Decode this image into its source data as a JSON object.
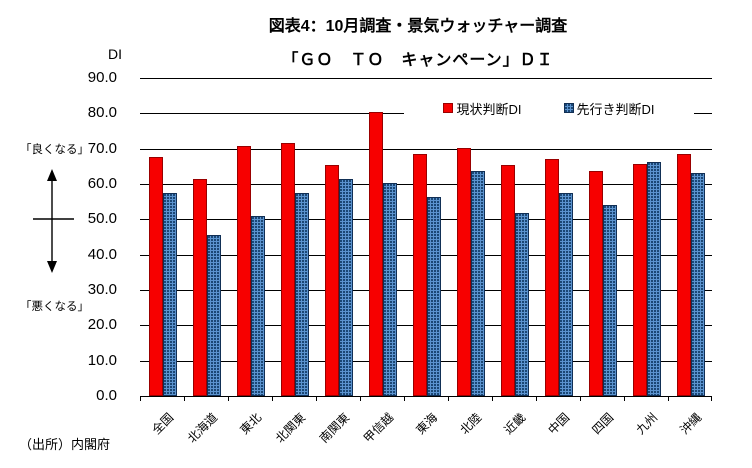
{
  "page": {
    "axis_unit": "DI",
    "better_label": "「良くなる」",
    "worse_label": "「悪くなる」",
    "source": "（出所）内閣府"
  },
  "chart_data": {
    "type": "bar",
    "title": "図表4：10月調査・景気ウォッチャー調査",
    "subtitle": "「ＧＯ　ＴＯ　キャンペーン」ＤＩ",
    "ylabel": "DI",
    "ylim": [
      0,
      90
    ],
    "ytick_step": 10,
    "ytick_labels": [
      "90.0",
      "80.0",
      "70.0",
      "60.0",
      "50.0",
      "40.0",
      "30.0",
      "20.0",
      "10.0",
      "0.0"
    ],
    "grid": true,
    "legend_position": "top-inside",
    "categories": [
      "全国",
      "北海道",
      "東北",
      "北関東",
      "南関東",
      "甲信越",
      "東海",
      "北陸",
      "近畿",
      "中国",
      "四国",
      "九州",
      "沖縄"
    ],
    "series": [
      {
        "name": "現状判断DI",
        "color": "#f70000",
        "values": [
          67.6,
          61.5,
          70.9,
          71.7,
          65.5,
          80.5,
          68.5,
          70.2,
          65.5,
          67.0,
          63.7,
          65.6,
          68.6
        ]
      },
      {
        "name": "先行き判断DI",
        "color": "#5b93cf",
        "pattern": "dots",
        "values": [
          57.5,
          45.6,
          51.0,
          57.4,
          61.5,
          60.2,
          56.4,
          63.7,
          51.9,
          57.5,
          54.2,
          66.2,
          63.2
        ]
      }
    ],
    "annotations": {
      "better_direction": "「良くなる」",
      "worse_direction": "「悪くなる」",
      "source": "（出所）内閣府"
    }
  }
}
